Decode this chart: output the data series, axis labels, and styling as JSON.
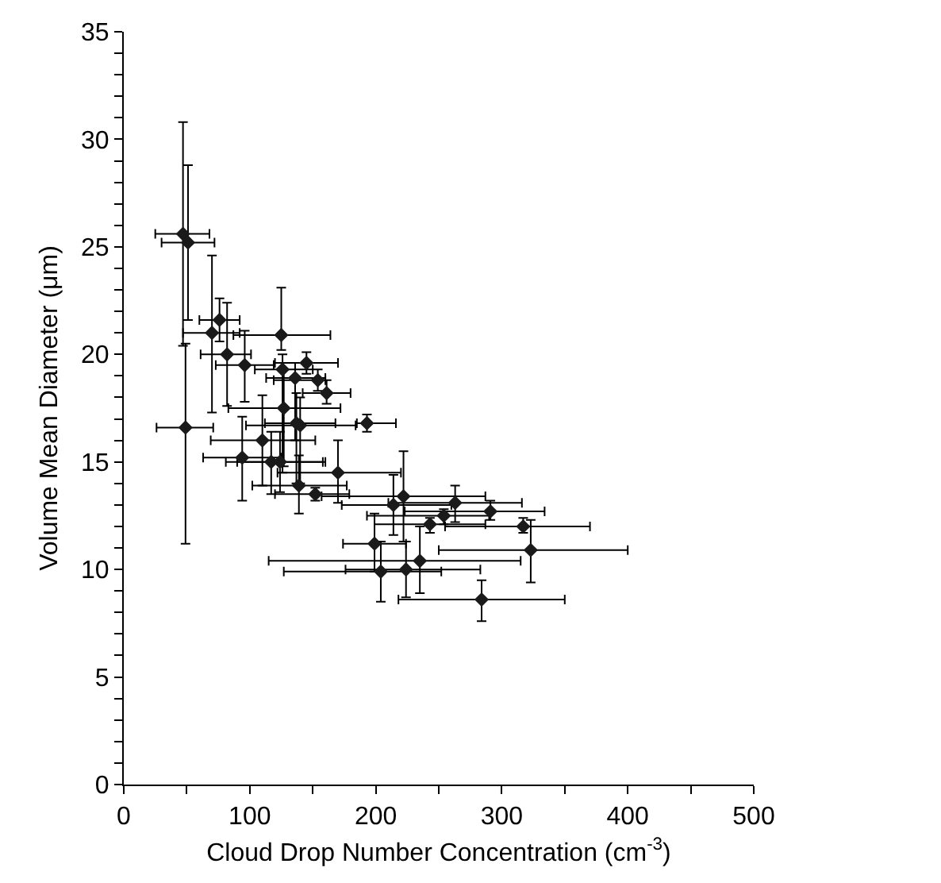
{
  "chart_data": {
    "type": "scatter",
    "xlabel": "Cloud Drop Number Concentration (cm$^{-3}$)",
    "ylabel": "Volume Mean Diameter (μm)",
    "xlim": [
      0,
      500
    ],
    "ylim": [
      0,
      35
    ],
    "xticks": [
      0,
      {
        "value": 50,
        "label": null
      },
      100,
      {
        "value": 150,
        "label": null
      },
      200,
      {
        "value": 250,
        "label": null
      },
      300,
      {
        "value": 350,
        "label": null
      },
      400,
      {
        "value": 450,
        "label": null
      },
      500
    ],
    "yticks": [
      0,
      {
        "value": 1,
        "label": null
      },
      {
        "value": 2,
        "label": null
      },
      {
        "value": 3,
        "label": null
      },
      {
        "value": 4,
        "label": null
      },
      5,
      {
        "value": 6,
        "label": null
      },
      {
        "value": 7,
        "label": null
      },
      {
        "value": 8,
        "label": null
      },
      {
        "value": 9,
        "label": null
      },
      10,
      {
        "value": 11,
        "label": null
      },
      {
        "value": 12,
        "label": null
      },
      {
        "value": 13,
        "label": null
      },
      {
        "value": 14,
        "label": null
      },
      15,
      {
        "value": 16,
        "label": null
      },
      {
        "value": 17,
        "label": null
      },
      {
        "value": 18,
        "label": null
      },
      {
        "value": 19,
        "label": null
      },
      20,
      {
        "value": 21,
        "label": null
      },
      {
        "value": 22,
        "label": null
      },
      {
        "value": 23,
        "label": null
      },
      {
        "value": 24,
        "label": null
      },
      25,
      {
        "value": 26,
        "label": null
      },
      {
        "value": 27,
        "label": null
      },
      {
        "value": 28,
        "label": null
      },
      {
        "value": 29,
        "label": null
      },
      30,
      {
        "value": 31,
        "label": null
      },
      {
        "value": 32,
        "label": null
      },
      {
        "value": 33,
        "label": null
      },
      {
        "value": 34,
        "label": null
      },
      35
    ],
    "grid": false,
    "marker": "diamond",
    "series": [
      {
        "color": "#1a1a1a",
        "x": [
          47,
          51,
          70,
          76,
          82,
          96,
          125,
          126,
          145,
          136,
          154,
          161,
          127,
          137,
          140,
          49,
          110,
          94,
          117,
          124,
          139,
          152,
          170,
          193,
          222,
          214,
          263,
          291,
          254,
          243,
          317,
          323,
          199,
          204,
          224,
          235,
          284
        ],
        "values": [
          25.6,
          25.2,
          21.0,
          21.6,
          20.0,
          19.5,
          20.9,
          19.3,
          19.6,
          18.9,
          18.8,
          18.2,
          17.5,
          16.8,
          16.7,
          16.6,
          16.0,
          15.2,
          15.0,
          15.0,
          13.9,
          13.5,
          14.5,
          16.8,
          13.4,
          13.0,
          13.1,
          12.7,
          12.5,
          12.1,
          12.0,
          10.9,
          11.2,
          9.9,
          10.0,
          10.4,
          8.6
        ],
        "xerrors": [
          [
            25,
            68
          ],
          [
            30,
            72
          ],
          [
            47,
            92
          ],
          [
            60,
            92
          ],
          [
            61,
            101
          ],
          [
            73,
            119
          ],
          [
            87,
            164
          ],
          [
            104,
            150
          ],
          [
            120,
            170
          ],
          [
            113,
            160
          ],
          [
            119,
            160
          ],
          [
            142,
            180
          ],
          [
            83,
            172
          ],
          [
            112,
            168
          ],
          [
            97,
            184
          ],
          [
            26,
            71
          ],
          [
            69,
            152
          ],
          [
            63,
            125
          ],
          [
            81,
            160
          ],
          [
            90,
            158
          ],
          [
            102,
            177
          ],
          [
            120,
            179
          ],
          [
            122,
            220
          ],
          [
            185,
            216
          ],
          [
            157,
            287
          ],
          [
            173,
            260
          ],
          [
            210,
            316
          ],
          [
            223,
            334
          ],
          [
            193,
            290
          ],
          [
            199,
            287
          ],
          [
            255,
            370
          ],
          [
            250,
            400
          ],
          [
            174,
            224
          ],
          [
            127,
            252
          ],
          [
            176,
            283
          ],
          [
            115,
            315
          ],
          [
            218,
            350
          ]
        ],
        "errors": [
          [
            20.4,
            30.8
          ],
          [
            21.6,
            28.8
          ],
          [
            17.3,
            24.6
          ],
          [
            20.6,
            22.6
          ],
          [
            17.6,
            22.4
          ],
          [
            17.8,
            21.1
          ],
          [
            20.2,
            23.1
          ],
          [
            14.5,
            20.0
          ],
          [
            19.1,
            20.1
          ],
          [
            16.0,
            19.6
          ],
          [
            18.3,
            19.3
          ],
          [
            17.7,
            18.8
          ],
          [
            14.8,
            19.3
          ],
          [
            14.0,
            18.2
          ],
          [
            14.0,
            18.0
          ],
          [
            11.2,
            20.5
          ],
          [
            13.9,
            18.1
          ],
          [
            13.2,
            17.1
          ],
          [
            13.5,
            16.4
          ],
          [
            13.6,
            16.4
          ],
          [
            12.6,
            15.3
          ],
          [
            13.2,
            13.8
          ],
          [
            13.1,
            16.0
          ],
          [
            16.4,
            17.2
          ],
          [
            11.3,
            15.5
          ],
          [
            11.6,
            14.4
          ],
          [
            12.2,
            13.9
          ],
          [
            12.3,
            13.2
          ],
          [
            12.1,
            12.8
          ],
          [
            11.7,
            12.4
          ],
          [
            11.7,
            12.4
          ],
          [
            9.4,
            12.3
          ],
          [
            9.9,
            12.6
          ],
          [
            8.5,
            11.3
          ],
          [
            8.7,
            11.3
          ],
          [
            8.9,
            12.0
          ],
          [
            7.6,
            9.5
          ]
        ]
      }
    ]
  }
}
